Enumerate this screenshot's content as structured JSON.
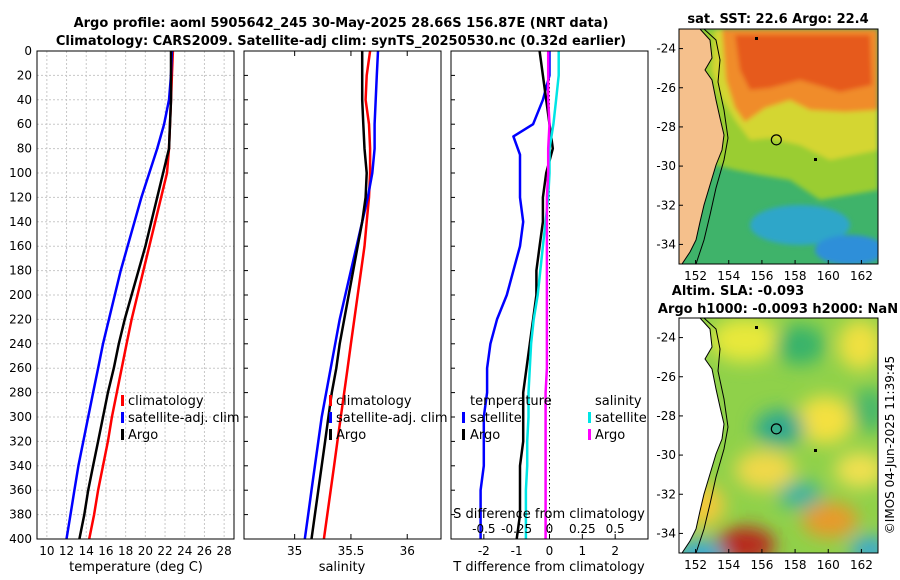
{
  "header": {
    "title_line1": "Argo profile: aoml 5905642_245 30-May-2025 28.66S 156.87E (NRT data)",
    "title_line2": "Climatology: CARS2009. Satellite-adj clim: synTS_20250530.nc (0.32d earlier)"
  },
  "colors": {
    "climatology": "#ff0000",
    "satellite": "#0000ff",
    "argo": "#000000",
    "argo_s_diff": "#ff00ff",
    "satellite_s_diff": "#00e5e5"
  },
  "chart_data": [
    {
      "id": "temperature",
      "type": "line",
      "xlabel": "temperature (deg C)",
      "ylabel": "",
      "xlim": [
        9,
        29
      ],
      "ylim": [
        400,
        0
      ],
      "xticks": [
        10,
        12,
        14,
        16,
        18,
        20,
        22,
        24,
        26,
        28
      ],
      "yticks": [
        0,
        20,
        40,
        60,
        80,
        100,
        120,
        140,
        160,
        180,
        200,
        220,
        240,
        260,
        280,
        300,
        320,
        340,
        360,
        380,
        400
      ],
      "grid": true,
      "legend": [
        "climatology",
        "satellite-adj. clim",
        "Argo"
      ],
      "series": [
        {
          "name": "climatology",
          "color": "#ff0000",
          "x": [
            22.8,
            22.7,
            22.6,
            22.5,
            22.4,
            22.2,
            21.6,
            21.0,
            20.4,
            19.8,
            19.2,
            18.6,
            18.1,
            17.6,
            17.1,
            16.6,
            16.2,
            15.7,
            15.2,
            14.8,
            14.3,
            14.1
          ],
          "depth": [
            0,
            20,
            40,
            60,
            80,
            100,
            120,
            140,
            160,
            180,
            200,
            220,
            240,
            260,
            280,
            300,
            320,
            340,
            360,
            380,
            400,
            405
          ]
        },
        {
          "name": "satellite-adj. clim",
          "color": "#0000ff",
          "x": [
            22.7,
            22.6,
            22.4,
            21.9,
            21.2,
            20.4,
            19.6,
            18.9,
            18.2,
            17.5,
            16.9,
            16.3,
            15.7,
            15.2,
            14.7,
            14.2,
            13.7,
            13.2,
            12.8,
            12.4,
            12.0
          ],
          "depth": [
            0,
            20,
            40,
            60,
            80,
            100,
            120,
            140,
            160,
            180,
            200,
            220,
            240,
            260,
            280,
            300,
            320,
            340,
            360,
            380,
            400
          ]
        },
        {
          "name": "Argo",
          "color": "#000000",
          "x": [
            22.6,
            22.6,
            22.6,
            22.5,
            22.4,
            21.8,
            21.2,
            20.6,
            20.0,
            19.3,
            18.6,
            17.9,
            17.3,
            16.8,
            16.2,
            15.7,
            15.2,
            14.7,
            14.2,
            13.8,
            13.3,
            13.1
          ],
          "depth": [
            0,
            20,
            40,
            60,
            80,
            100,
            120,
            140,
            160,
            180,
            200,
            220,
            240,
            260,
            280,
            300,
            320,
            340,
            360,
            380,
            400,
            405
          ]
        }
      ]
    },
    {
      "id": "salinity",
      "type": "line",
      "xlabel": "salinity",
      "ylabel": "",
      "xlim": [
        34.55,
        36.3
      ],
      "ylim": [
        400,
        0
      ],
      "xticks": [
        35,
        35.5,
        36
      ],
      "yticks": [
        0,
        20,
        40,
        60,
        80,
        100,
        120,
        140,
        160,
        180,
        200,
        220,
        240,
        260,
        280,
        300,
        320,
        340,
        360,
        380,
        400
      ],
      "grid": false,
      "legend": [
        "climatology",
        "satellite-adj. clim",
        "Argo"
      ],
      "series": [
        {
          "name": "climatology",
          "color": "#ff0000",
          "x": [
            35.67,
            35.64,
            35.63,
            35.66,
            35.67,
            35.67,
            35.66,
            35.64,
            35.62,
            35.59,
            35.56,
            35.53,
            35.5,
            35.47,
            35.44,
            35.41,
            35.38,
            35.35,
            35.32,
            35.29,
            35.26,
            35.24
          ],
          "depth": [
            0,
            20,
            40,
            60,
            80,
            100,
            120,
            140,
            160,
            180,
            200,
            220,
            240,
            260,
            280,
            300,
            320,
            340,
            360,
            380,
            400,
            405
          ]
        },
        {
          "name": "satellite-adj. clim",
          "color": "#0000ff",
          "x": [
            35.74,
            35.73,
            35.72,
            35.71,
            35.71,
            35.69,
            35.65,
            35.6,
            35.55,
            35.5,
            35.45,
            35.4,
            35.36,
            35.32,
            35.28,
            35.24,
            35.21,
            35.18,
            35.15,
            35.12,
            35.09
          ],
          "depth": [
            0,
            20,
            40,
            60,
            80,
            100,
            120,
            140,
            160,
            180,
            200,
            220,
            240,
            260,
            280,
            300,
            320,
            340,
            360,
            380,
            400
          ]
        },
        {
          "name": "Argo",
          "color": "#000000",
          "x": [
            35.6,
            35.6,
            35.6,
            35.61,
            35.62,
            35.64,
            35.63,
            35.6,
            35.56,
            35.52,
            35.48,
            35.44,
            35.4,
            35.37,
            35.33,
            35.3,
            35.27,
            35.24,
            35.21,
            35.18,
            35.15,
            35.14
          ],
          "depth": [
            0,
            20,
            40,
            60,
            80,
            100,
            120,
            140,
            160,
            180,
            200,
            220,
            240,
            260,
            280,
            300,
            320,
            340,
            360,
            380,
            400,
            405
          ]
        }
      ]
    },
    {
      "id": "difference",
      "type": "line",
      "xlabel": "T difference from climatology",
      "xlabel_top": "S difference from climatology",
      "ylabel": "",
      "xlim": [
        -3,
        3
      ],
      "x2lim": [
        -0.75,
        0.75
      ],
      "ylim": [
        400,
        0
      ],
      "xticks": [
        -2,
        -1,
        0,
        1,
        2
      ],
      "x2ticks": [
        -0.5,
        -0.25,
        0,
        0.25,
        0.5
      ],
      "x2ticklabels": [
        "-0.5",
        "-0.25",
        "0",
        "0.25",
        "0.5"
      ],
      "yticks": [
        0,
        20,
        40,
        60,
        80,
        100,
        120,
        140,
        160,
        180,
        200,
        220,
        240,
        260,
        280,
        300,
        320,
        340,
        360,
        380,
        400
      ],
      "grid": false,
      "legend_temperature_title": "temperature",
      "legend_salinity_title": "salinity",
      "legend_temperature": [
        "satellite",
        "Argo"
      ],
      "legend_salinity": [
        "satellite",
        "Argo"
      ],
      "series": [
        {
          "name": "T satellite",
          "color": "#0000ff",
          "x": [
            0.0,
            0.0,
            -0.2,
            -0.5,
            -1.1,
            -0.9,
            -0.9,
            -0.9,
            -0.8,
            -0.9,
            -1.1,
            -1.3,
            -1.6,
            -1.8,
            -1.9,
            -1.9,
            -2.0,
            -2.0,
            -2.0,
            -2.1,
            -2.1
          ],
          "depth": [
            0,
            20,
            40,
            60,
            70,
            85,
            100,
            120,
            140,
            160,
            180,
            200,
            220,
            240,
            260,
            280,
            300,
            320,
            340,
            360,
            400
          ]
        },
        {
          "name": "T Argo",
          "color": "#000000",
          "x": [
            -0.3,
            -0.2,
            -0.1,
            0.0,
            0.1,
            -0.1,
            -0.2,
            -0.2,
            -0.3,
            -0.4,
            -0.4,
            -0.5,
            -0.6,
            -0.7,
            -0.8,
            -0.8,
            -0.8,
            -0.8,
            -0.9,
            -0.9,
            -0.9,
            -1.0,
            -1.0
          ],
          "depth": [
            0,
            20,
            40,
            60,
            80,
            100,
            120,
            140,
            160,
            180,
            200,
            220,
            240,
            260,
            280,
            290,
            300,
            320,
            340,
            360,
            380,
            400,
            405
          ]
        },
        {
          "name": "S satellite",
          "color": "#00e5e5",
          "x": [
            0.07,
            0.07,
            0.05,
            0.03,
            0.0,
            0.0,
            -0.01,
            -0.03,
            -0.05,
            -0.07,
            -0.09,
            -0.12,
            -0.14,
            -0.15,
            -0.16,
            -0.16,
            -0.17,
            -0.17,
            -0.18,
            -0.18,
            -0.18
          ],
          "depth": [
            0,
            20,
            40,
            60,
            80,
            100,
            120,
            140,
            160,
            180,
            200,
            220,
            240,
            260,
            280,
            300,
            320,
            340,
            360,
            380,
            400
          ]
        },
        {
          "name": "S Argo",
          "color": "#ff00ff",
          "x": [
            -0.01,
            -0.01,
            -0.01,
            0.0,
            -0.01,
            -0.01,
            -0.02,
            -0.02,
            -0.02,
            -0.02,
            -0.02,
            -0.02,
            -0.02,
            -0.02,
            -0.03,
            -0.03,
            -0.03,
            -0.03,
            -0.03,
            -0.03,
            -0.03
          ],
          "depth": [
            0,
            20,
            40,
            60,
            80,
            100,
            120,
            140,
            160,
            180,
            200,
            220,
            240,
            260,
            280,
            300,
            320,
            340,
            360,
            380,
            400
          ]
        }
      ]
    },
    {
      "id": "sst_map",
      "type": "heatmap",
      "title": "sat. SST: 22.6 Argo: 22.4",
      "xlim": [
        151,
        163
      ],
      "ylim": [
        -35,
        -23
      ],
      "xticks": [
        152,
        154,
        156,
        158,
        160,
        162
      ],
      "yticks": [
        -24,
        -26,
        -28,
        -30,
        -32,
        -34
      ],
      "float_position": {
        "lon": 156.87,
        "lat": -28.66
      }
    },
    {
      "id": "sla_map",
      "type": "heatmap",
      "title": "Altim. SLA: -0.093",
      "subtitle": "Argo h1000: -0.0093 h2000: NaN",
      "xlim": [
        151,
        163
      ],
      "ylim": [
        -35,
        -23
      ],
      "xticks": [
        152,
        154,
        156,
        158,
        160,
        162
      ],
      "yticks": [
        -24,
        -26,
        -28,
        -30,
        -32,
        -34
      ],
      "float_position": {
        "lon": 156.87,
        "lat": -28.66
      }
    }
  ],
  "footer": {
    "credit": "©IMOS 04-Jun-2025 11:39:45"
  }
}
